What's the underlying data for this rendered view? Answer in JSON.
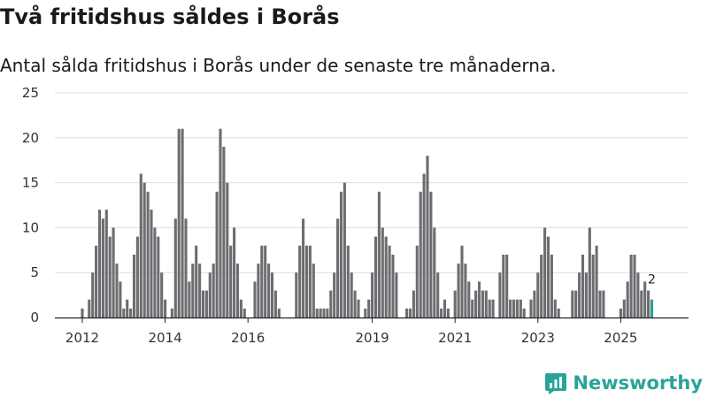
{
  "title": "Två fritidshus såldes i Borås",
  "subtitle": "Antal sålda fritidshus i Borås under de senaste tre månaderna.",
  "brand": "Newsworthy",
  "colors": {
    "bar": "#6d6c70",
    "highlight": "#2a9d96",
    "grid": "#dddddd",
    "axis": "#222222",
    "brand": "#2aa39a"
  },
  "chart_data": {
    "type": "bar",
    "title": "Antal sålda fritidshus i Borås under de senaste tre månaderna.",
    "xlabel": "",
    "ylabel": "",
    "ylim": [
      0,
      25
    ],
    "yticks": [
      0,
      5,
      10,
      15,
      20,
      25
    ],
    "grid": true,
    "start": "2012-01",
    "interval": "monthly",
    "xtick_labels": [
      {
        "label": "2012",
        "month_index": 0
      },
      {
        "label": "2014",
        "month_index": 24
      },
      {
        "label": "2016",
        "month_index": 48
      },
      {
        "label": "2019",
        "month_index": 84
      },
      {
        "label": "2021",
        "month_index": 108
      },
      {
        "label": "2023",
        "month_index": 132
      },
      {
        "label": "2025",
        "month_index": 156
      }
    ],
    "values": [
      1,
      0,
      2,
      5,
      8,
      12,
      11,
      12,
      9,
      10,
      6,
      4,
      1,
      2,
      1,
      7,
      9,
      16,
      15,
      14,
      12,
      10,
      9,
      5,
      2,
      0,
      1,
      11,
      21,
      21,
      11,
      4,
      6,
      8,
      6,
      3,
      3,
      5,
      6,
      14,
      21,
      19,
      15,
      8,
      10,
      6,
      2,
      1,
      0,
      0,
      4,
      6,
      8,
      8,
      6,
      5,
      3,
      1,
      0,
      0,
      0,
      0,
      5,
      8,
      11,
      8,
      8,
      6,
      1,
      1,
      1,
      1,
      3,
      5,
      11,
      14,
      15,
      8,
      5,
      3,
      2,
      0,
      1,
      2,
      5,
      9,
      14,
      10,
      9,
      8,
      7,
      5,
      0,
      0,
      1,
      1,
      3,
      8,
      14,
      16,
      18,
      14,
      10,
      5,
      1,
      2,
      1,
      0,
      3,
      6,
      8,
      6,
      4,
      2,
      3,
      4,
      3,
      3,
      2,
      2,
      0,
      5,
      7,
      7,
      2,
      2,
      2,
      2,
      1,
      0,
      2,
      3,
      5,
      7,
      10,
      9,
      7,
      2,
      1,
      0,
      0,
      0,
      3,
      3,
      5,
      7,
      5,
      10,
      7,
      8,
      3,
      3,
      0,
      0,
      0,
      0,
      1,
      2,
      4,
      7,
      7,
      5,
      3,
      4,
      3,
      2
    ],
    "highlight_last": 1,
    "annotations": [
      {
        "text": "2",
        "target": "last"
      }
    ]
  }
}
